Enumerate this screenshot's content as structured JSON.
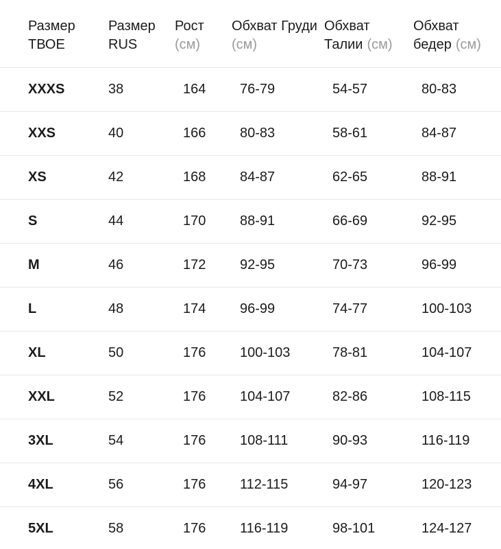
{
  "table": {
    "columns": [
      {
        "id": "size_tvoe",
        "line1": "Размер",
        "line2": "ТВОЕ",
        "unit": ""
      },
      {
        "id": "size_rus",
        "line1": "Размер",
        "line2": "RUS",
        "unit": ""
      },
      {
        "id": "height",
        "line1": "Рост",
        "line2": "",
        "unit": "(см)"
      },
      {
        "id": "chest",
        "line1": "Обхват Груди",
        "line2": "",
        "unit": "(см)"
      },
      {
        "id": "waist",
        "line1": "Обхват",
        "line2": "Талии",
        "unit": "(см)"
      },
      {
        "id": "hips",
        "line1": "Обхват",
        "line2": "бедер",
        "unit": "(см)"
      }
    ],
    "rows": [
      [
        "XXXS",
        "38",
        "164",
        "76-79",
        "54-57",
        "80-83"
      ],
      [
        "XXS",
        "40",
        "166",
        "80-83",
        "58-61",
        "84-87"
      ],
      [
        "XS",
        "42",
        "168",
        "84-87",
        "62-65",
        "88-91"
      ],
      [
        "S",
        "44",
        "170",
        "88-91",
        "66-69",
        "92-95"
      ],
      [
        "M",
        "46",
        "172",
        "92-95",
        "70-73",
        "96-99"
      ],
      [
        "L",
        "48",
        "174",
        "96-99",
        "74-77",
        "100-103"
      ],
      [
        "XL",
        "50",
        "176",
        "100-103",
        "78-81",
        "104-107"
      ],
      [
        "XXL",
        "52",
        "176",
        "104-107",
        "82-86",
        "108-115"
      ],
      [
        "3XL",
        "54",
        "176",
        "108-111",
        "90-93",
        "116-119"
      ],
      [
        "4XL",
        "56",
        "176",
        "112-115",
        "94-97",
        "120-123"
      ],
      [
        "5XL",
        "58",
        "176",
        "116-119",
        "98-101",
        "124-127"
      ]
    ]
  },
  "colors": {
    "text": "#1b1b1b",
    "muted_unit": "#9b9b9b",
    "divider": "#e7e7e7",
    "background": "#ffffff"
  }
}
